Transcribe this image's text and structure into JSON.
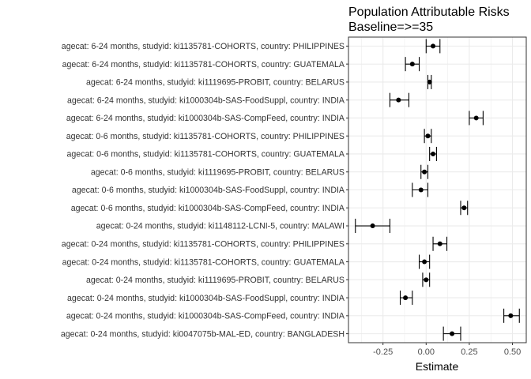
{
  "chart_data": {
    "type": "forest",
    "title_lines": [
      "Population Attributable Risks",
      "Baseline=>=35"
    ],
    "xlabel": "Estimate",
    "ylabel": "",
    "xlim": [
      -0.45,
      0.58
    ],
    "xticks": [
      -0.25,
      0.0,
      0.25,
      0.5
    ],
    "xtick_labels": [
      "-0.25",
      "0.00",
      "0.25",
      "0.50"
    ],
    "grid": true,
    "colors": {
      "panel_bg": "#ffffff",
      "grid": "#ebebeb",
      "border": "#333333",
      "point": "#000000"
    },
    "rows": [
      {
        "label": "agecat: 6-24 months, studyid: ki1135781-COHORTS, country: PHILIPPINES",
        "estimate": 0.04,
        "lower": 0.0,
        "upper": 0.08
      },
      {
        "label": "agecat: 6-24 months, studyid: ki1135781-COHORTS, country: GUATEMALA",
        "estimate": -0.08,
        "lower": -0.12,
        "upper": -0.04
      },
      {
        "label": "agecat: 6-24 months, studyid: ki1119695-PROBIT, country: BELARUS",
        "estimate": 0.02,
        "lower": 0.01,
        "upper": 0.03
      },
      {
        "label": "agecat: 6-24 months, studyid: ki1000304b-SAS-FoodSuppl, country: INDIA",
        "estimate": -0.16,
        "lower": -0.21,
        "upper": -0.1
      },
      {
        "label": "agecat: 6-24 months, studyid: ki1000304b-SAS-CompFeed, country: INDIA",
        "estimate": 0.29,
        "lower": 0.25,
        "upper": 0.33
      },
      {
        "label": "agecat: 0-6 months, studyid: ki1135781-COHORTS, country: PHILIPPINES",
        "estimate": 0.01,
        "lower": -0.01,
        "upper": 0.03
      },
      {
        "label": "agecat: 0-6 months, studyid: ki1135781-COHORTS, country: GUATEMALA",
        "estimate": 0.04,
        "lower": 0.02,
        "upper": 0.06
      },
      {
        "label": "agecat: 0-6 months, studyid: ki1119695-PROBIT, country: BELARUS",
        "estimate": -0.01,
        "lower": -0.03,
        "upper": 0.01
      },
      {
        "label": "agecat: 0-6 months, studyid: ki1000304b-SAS-FoodSuppl, country: INDIA",
        "estimate": -0.03,
        "lower": -0.08,
        "upper": 0.01
      },
      {
        "label": "agecat: 0-6 months, studyid: ki1000304b-SAS-CompFeed, country: INDIA",
        "estimate": 0.22,
        "lower": 0.2,
        "upper": 0.24
      },
      {
        "label": "agecat: 0-24 months, studyid: ki1148112-LCNI-5, country: MALAWI",
        "estimate": -0.31,
        "lower": -0.41,
        "upper": -0.21
      },
      {
        "label": "agecat: 0-24 months, studyid: ki1135781-COHORTS, country: PHILIPPINES",
        "estimate": 0.08,
        "lower": 0.04,
        "upper": 0.12
      },
      {
        "label": "agecat: 0-24 months, studyid: ki1135781-COHORTS, country: GUATEMALA",
        "estimate": -0.01,
        "lower": -0.04,
        "upper": 0.02
      },
      {
        "label": "agecat: 0-24 months, studyid: ki1119695-PROBIT, country: BELARUS",
        "estimate": 0.0,
        "lower": -0.02,
        "upper": 0.02
      },
      {
        "label": "agecat: 0-24 months, studyid: ki1000304b-SAS-FoodSuppl, country: INDIA",
        "estimate": -0.12,
        "lower": -0.15,
        "upper": -0.08
      },
      {
        "label": "agecat: 0-24 months, studyid: ki1000304b-SAS-CompFeed, country: INDIA",
        "estimate": 0.49,
        "lower": 0.45,
        "upper": 0.54
      },
      {
        "label": "agecat: 0-24 months, studyid: ki0047075b-MAL-ED, country: BANGLADESH",
        "estimate": 0.15,
        "lower": 0.1,
        "upper": 0.2
      }
    ]
  }
}
